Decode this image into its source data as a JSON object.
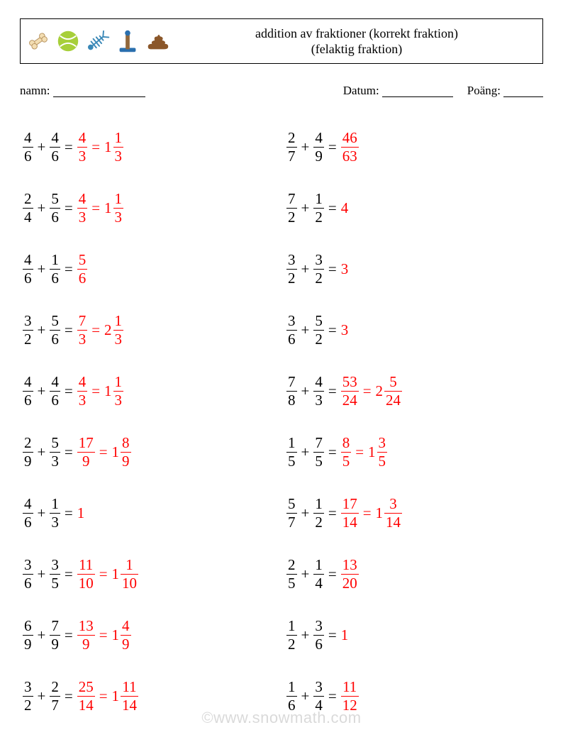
{
  "header": {
    "title_line1": "addition av fraktioner (korrekt fraktion)",
    "title_line2": "(felaktig fraktion)"
  },
  "info": {
    "name_label": "namn:",
    "date_label": "Datum:",
    "score_label": "Poäng:"
  },
  "colors": {
    "answer": "#ff0000",
    "text": "#000000",
    "background": "#ffffff",
    "watermark": "rgba(0,0,0,0.15)"
  },
  "icons": {
    "bone": {
      "name": "bone-icon",
      "fill": "#f3deb3",
      "stroke": "#b6915d"
    },
    "ball": {
      "name": "tennis-ball-icon",
      "fill": "#a7cf3a",
      "line": "#ffffff"
    },
    "fish": {
      "name": "fish-bone-icon",
      "stroke": "#3a88b7"
    },
    "post": {
      "name": "scratching-post-icon",
      "post": "#91673b",
      "base": "#2a6fae"
    },
    "poop": {
      "name": "poop-icon",
      "fill": "#8b572a"
    }
  },
  "watermark": "©www.snowmath.com",
  "problems": {
    "left": [
      {
        "a": [
          4,
          6
        ],
        "b": [
          4,
          6
        ],
        "ans": {
          "frac": [
            4,
            3
          ],
          "mixed": [
            1,
            1,
            3
          ]
        }
      },
      {
        "a": [
          2,
          4
        ],
        "b": [
          5,
          6
        ],
        "ans": {
          "frac": [
            4,
            3
          ],
          "mixed": [
            1,
            1,
            3
          ]
        }
      },
      {
        "a": [
          4,
          6
        ],
        "b": [
          1,
          6
        ],
        "ans": {
          "frac": [
            5,
            6
          ]
        }
      },
      {
        "a": [
          3,
          2
        ],
        "b": [
          5,
          6
        ],
        "ans": {
          "frac": [
            7,
            3
          ],
          "mixed": [
            2,
            1,
            3
          ]
        }
      },
      {
        "a": [
          4,
          6
        ],
        "b": [
          4,
          6
        ],
        "ans": {
          "frac": [
            4,
            3
          ],
          "mixed": [
            1,
            1,
            3
          ]
        }
      },
      {
        "a": [
          2,
          9
        ],
        "b": [
          5,
          3
        ],
        "ans": {
          "frac": [
            17,
            9
          ],
          "mixed": [
            1,
            8,
            9
          ]
        }
      },
      {
        "a": [
          4,
          6
        ],
        "b": [
          1,
          3
        ],
        "ans": {
          "int": 1
        }
      },
      {
        "a": [
          3,
          6
        ],
        "b": [
          3,
          5
        ],
        "ans": {
          "frac": [
            11,
            10
          ],
          "mixed": [
            1,
            1,
            10
          ]
        }
      },
      {
        "a": [
          6,
          9
        ],
        "b": [
          7,
          9
        ],
        "ans": {
          "frac": [
            13,
            9
          ],
          "mixed": [
            1,
            4,
            9
          ]
        }
      },
      {
        "a": [
          3,
          2
        ],
        "b": [
          2,
          7
        ],
        "ans": {
          "frac": [
            25,
            14
          ],
          "mixed": [
            1,
            11,
            14
          ]
        }
      }
    ],
    "right": [
      {
        "a": [
          2,
          7
        ],
        "b": [
          4,
          9
        ],
        "ans": {
          "frac": [
            46,
            63
          ]
        }
      },
      {
        "a": [
          7,
          2
        ],
        "b": [
          1,
          2
        ],
        "ans": {
          "int": 4
        }
      },
      {
        "a": [
          3,
          2
        ],
        "b": [
          3,
          2
        ],
        "ans": {
          "int": 3
        }
      },
      {
        "a": [
          3,
          6
        ],
        "b": [
          5,
          2
        ],
        "ans": {
          "int": 3
        }
      },
      {
        "a": [
          7,
          8
        ],
        "b": [
          4,
          3
        ],
        "ans": {
          "frac": [
            53,
            24
          ],
          "mixed": [
            2,
            5,
            24
          ]
        }
      },
      {
        "a": [
          1,
          5
        ],
        "b": [
          7,
          5
        ],
        "ans": {
          "frac": [
            8,
            5
          ],
          "mixed": [
            1,
            3,
            5
          ]
        }
      },
      {
        "a": [
          5,
          7
        ],
        "b": [
          1,
          2
        ],
        "ans": {
          "frac": [
            17,
            14
          ],
          "mixed": [
            1,
            3,
            14
          ]
        }
      },
      {
        "a": [
          2,
          5
        ],
        "b": [
          1,
          4
        ],
        "ans": {
          "frac": [
            13,
            20
          ]
        }
      },
      {
        "a": [
          1,
          2
        ],
        "b": [
          3,
          6
        ],
        "ans": {
          "int": 1
        }
      },
      {
        "a": [
          1,
          6
        ],
        "b": [
          3,
          4
        ],
        "ans": {
          "frac": [
            11,
            12
          ]
        }
      }
    ]
  }
}
